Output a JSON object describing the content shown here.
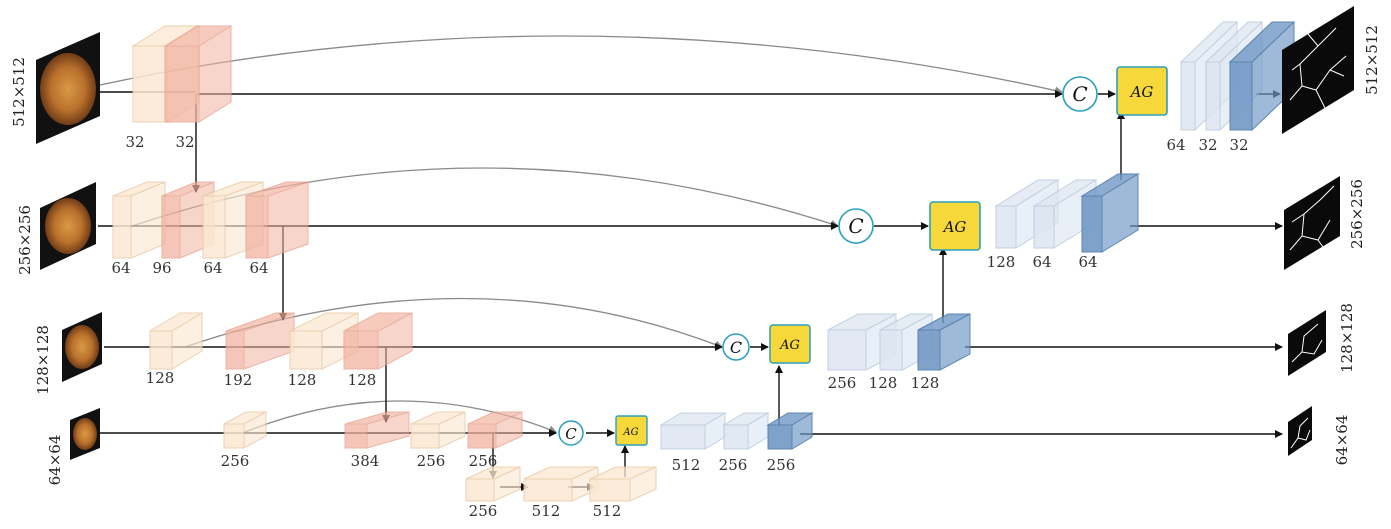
{
  "scales": {
    "s512": "512×512",
    "s256": "256×256",
    "s128": "128×128",
    "s64": "64×64"
  },
  "concat_symbol": "C",
  "attention_gate": "AG",
  "encoder": {
    "row1": [
      "32",
      "32"
    ],
    "row2": [
      "64",
      "96",
      "64",
      "64"
    ],
    "row3": [
      "128",
      "192",
      "128",
      "128"
    ],
    "row4": [
      "256",
      "384",
      "256",
      "256"
    ],
    "bottleneck": [
      "256",
      "512",
      "512"
    ]
  },
  "decoder": {
    "row4": [
      "512",
      "256",
      "256"
    ],
    "row3": [
      "256",
      "128",
      "128"
    ],
    "row2": [
      "128",
      "64",
      "64"
    ],
    "row1": [
      "64",
      "32",
      "32"
    ]
  },
  "colors": {
    "encoder_light": "#fbe8d2",
    "encoder_dark": "#f2b3a0",
    "decoder_light": "#dde6f1",
    "decoder_dark": "#7299c6",
    "ag_fill": "#f6d83a",
    "ag_border": "#2a9fc0",
    "concat_border": "#2a9fc0"
  }
}
